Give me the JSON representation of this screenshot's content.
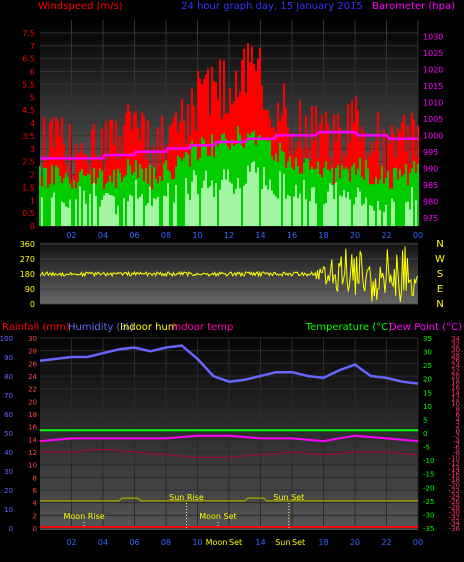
{
  "header": {
    "left_title": "Windspeed (m/s)",
    "center_title": "24 hour graph day, 15 January 2015",
    "right_title": "Barometer (hpa)"
  },
  "colors": {
    "wind_gust": "#ff0000",
    "wind_avg": "#00cc00",
    "wind_low": "#ccffcc",
    "barometer": "#ff00ff",
    "direction": "#ffff00",
    "humidity": "#6666ff",
    "temperature": "#00ff00",
    "dew_point": "#ff00ff",
    "indoor_temp": "#aa0044",
    "rain": "#ff0000",
    "sun_line": "#999900",
    "axis_left_top": "#ff0000",
    "axis_right_top": "#ff00ff",
    "axis_bottom_left": "#6666ff",
    "axis_bottom_right": "#00ff00"
  },
  "chart_data": [
    {
      "type": "area",
      "name": "wind-barometer",
      "title": "24 hour graph day, 15 January 2015",
      "ylabel_left": "Windspeed (m/s)",
      "ylabel_right": "Barometer (hpa)",
      "x_ticks": [
        "02",
        "04",
        "06",
        "08",
        "10",
        "12",
        "14",
        "16",
        "18",
        "20",
        "22",
        "00"
      ],
      "y_left_ticks": [
        "0",
        "0.5",
        "1",
        "1.5",
        "2",
        "2.5",
        "3",
        "3.5",
        "4",
        "4.5",
        "5",
        "5.5",
        "6",
        "6.5",
        "7",
        "7.5"
      ],
      "y_left_range": [
        0,
        8
      ],
      "y_right_ticks": [
        "975",
        "980",
        "985",
        "990",
        "995",
        "1000",
        "1005",
        "1010",
        "1015",
        "1020",
        "1025",
        "1030"
      ],
      "y_right_range": [
        972.5,
        1035
      ],
      "x_range": [
        0,
        24
      ],
      "series": [
        {
          "key": "barometer",
          "x": [
            0,
            4,
            4.1,
            6,
            6.1,
            8,
            8.1,
            9.5,
            9.6,
            11,
            11.2,
            13,
            13.2,
            14.9,
            15,
            17.5,
            17.7,
            20,
            20.2,
            22,
            22.2,
            24
          ],
          "values": [
            993,
            993,
            994,
            994,
            995,
            995,
            996,
            996,
            997,
            997,
            998,
            998,
            999,
            999,
            1000,
            1000,
            1001,
            1001,
            1000,
            1000,
            999,
            999
          ]
        },
        {
          "key": "wind_gust",
          "x": [
            0,
            1,
            2,
            3,
            4,
            5,
            6,
            7,
            8,
            9,
            10,
            11,
            12,
            13,
            14,
            15,
            16,
            17,
            18,
            19,
            20,
            21,
            22,
            23,
            24
          ],
          "values": [
            3.2,
            3.0,
            2.8,
            3.4,
            3.0,
            3.2,
            3.6,
            3.0,
            3.4,
            4.0,
            5.0,
            5.2,
            5.4,
            5.8,
            6.0,
            4.8,
            3.8,
            3.6,
            3.4,
            3.2,
            3.8,
            3.4,
            3.0,
            3.2,
            3.4
          ]
        },
        {
          "key": "wind_avg",
          "x": [
            0,
            1,
            2,
            3,
            4,
            5,
            6,
            7,
            8,
            9,
            10,
            11,
            12,
            13,
            14,
            15,
            16,
            17,
            18,
            19,
            20,
            21,
            22,
            23,
            24
          ],
          "values": [
            2.0,
            1.9,
            1.8,
            2.1,
            1.9,
            2.0,
            2.3,
            1.9,
            2.1,
            2.5,
            3.0,
            3.1,
            3.3,
            3.5,
            3.6,
            2.9,
            2.4,
            2.2,
            2.1,
            2.0,
            2.3,
            2.1,
            1.9,
            2.0,
            2.1
          ]
        }
      ]
    },
    {
      "type": "scatter",
      "name": "wind-direction",
      "ylabel_right": "N W S E N",
      "y_ticks": [
        "0",
        "90",
        "180",
        "270",
        "360"
      ],
      "y_range": [
        0,
        360
      ],
      "compass": [
        "N",
        "W",
        "S",
        "E",
        "N"
      ],
      "x_range": [
        0,
        24
      ],
      "series": [
        {
          "key": "direction",
          "x": [
            0,
            6,
            12,
            17,
            19,
            20,
            21,
            22,
            23,
            24
          ],
          "values": [
            180,
            180,
            185,
            190,
            200,
            180,
            175,
            180,
            190,
            180
          ]
        }
      ]
    },
    {
      "type": "line",
      "name": "humidity-temperature",
      "legend": [
        "Rainfall (mm)",
        "Humidity (%)",
        "Indoor hum",
        "Indoor temp",
        "Temperature (°C)",
        "Dew Point (°C)"
      ],
      "y_rain_ticks": [
        "0",
        "2",
        "4",
        "6",
        "8",
        "10",
        "12",
        "14",
        "16",
        "18",
        "20",
        "22",
        "24",
        "26",
        "28",
        "30"
      ],
      "y_rain_range": [
        0,
        30
      ],
      "y_hum_ticks": [
        "0",
        "10",
        "20",
        "30",
        "40",
        "50",
        "60",
        "70",
        "80",
        "90",
        "100"
      ],
      "y_hum_range": [
        0,
        100
      ],
      "y_temp_ticks": [
        "-35",
        "-30",
        "-25",
        "-20",
        "-15",
        "-10",
        "-5",
        "0",
        "5",
        "10",
        "15",
        "20",
        "25",
        "30",
        "35"
      ],
      "y_temp_range": [
        -35,
        35
      ],
      "y_temp2_ticks": [
        "-36",
        "-34",
        "-32",
        "-30",
        "-28",
        "-26",
        "-24",
        "-22",
        "-20",
        "-18",
        "-16",
        "-14",
        "-12",
        "-10",
        "-8",
        "-6",
        "-4",
        "-2",
        "0",
        "2",
        "4",
        "6",
        "8",
        "10",
        "12",
        "14",
        "16",
        "18",
        "20",
        "22",
        "24",
        "26",
        "28",
        "30",
        "32",
        "34"
      ],
      "x_ticks": [
        "02",
        "04",
        "06",
        "08",
        "10",
        "12",
        "14",
        "16",
        "18",
        "20",
        "22",
        "00"
      ],
      "x_range": [
        0,
        24
      ],
      "annotations": [
        "Moon Rise",
        "Sun Rise",
        "Moon Set",
        "Sun Set"
      ],
      "bottom_labels": [
        "Moon",
        "Set",
        "Sun",
        "Set"
      ],
      "series": [
        {
          "key": "humidity",
          "x": [
            0,
            1,
            2,
            3,
            4,
            5,
            6,
            7,
            8,
            9,
            10,
            11,
            12,
            13,
            14,
            15,
            16,
            17,
            18,
            19,
            20,
            21,
            22,
            23,
            24
          ],
          "values": [
            88,
            89,
            90,
            90,
            92,
            94,
            95,
            93,
            95,
            96,
            89,
            80,
            77,
            78,
            80,
            82,
            82,
            80,
            79,
            83,
            86,
            80,
            79,
            77,
            76
          ]
        },
        {
          "key": "temperature",
          "x": [
            0,
            4,
            8,
            12,
            16,
            20,
            24
          ],
          "values": [
            1,
            1,
            1,
            1,
            1,
            1,
            1
          ]
        },
        {
          "key": "dew_point",
          "x": [
            0,
            2,
            4,
            6,
            8,
            10,
            12,
            14,
            16,
            18,
            20,
            22,
            24
          ],
          "values": [
            -3,
            -2,
            -2,
            -2,
            -2,
            -1,
            -1,
            -2,
            -2,
            -3,
            -1,
            -2,
            -3
          ]
        },
        {
          "key": "indoor_temp",
          "x": [
            0,
            2,
            4,
            6,
            8,
            10,
            12,
            14,
            16,
            18,
            20,
            22,
            24
          ],
          "values": [
            -7,
            -7,
            -6,
            -7,
            -8,
            -9,
            -9,
            -8,
            -7,
            -8,
            -7,
            -7,
            -8
          ]
        },
        {
          "key": "sun_line",
          "x": [
            0,
            5,
            5.2,
            6.2,
            6.4,
            13,
            13.2,
            14.2,
            14.4,
            24
          ],
          "values": [
            -25,
            -25,
            -24,
            -24,
            -25,
            -25,
            -24,
            -24,
            -25,
            -25
          ]
        }
      ]
    }
  ]
}
